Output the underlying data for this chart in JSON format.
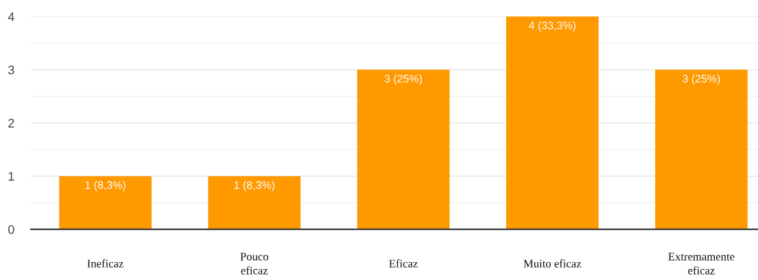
{
  "chart_data": {
    "type": "bar",
    "categories": [
      "Ineficaz",
      "Pouco\neficaz",
      "Eficaz",
      "Muito eficaz",
      "Extremamente\neficaz"
    ],
    "values": [
      1,
      1,
      3,
      4,
      3
    ],
    "color": "#ff9900",
    "value_labels": [
      "1 (8,3%)",
      "1 (8,3%)",
      "3 (25%)",
      "4 (33,3%)",
      "3 (25%)"
    ],
    "ylim": [
      0,
      4
    ],
    "yticks": [
      0,
      {
        "value": 0.5,
        "label": null
      },
      1,
      {
        "value": 1.5,
        "label": null
      },
      2,
      {
        "value": 2.5,
        "label": null
      },
      3,
      {
        "value": 3.5,
        "label": null
      },
      4
    ],
    "grid": "y"
  }
}
